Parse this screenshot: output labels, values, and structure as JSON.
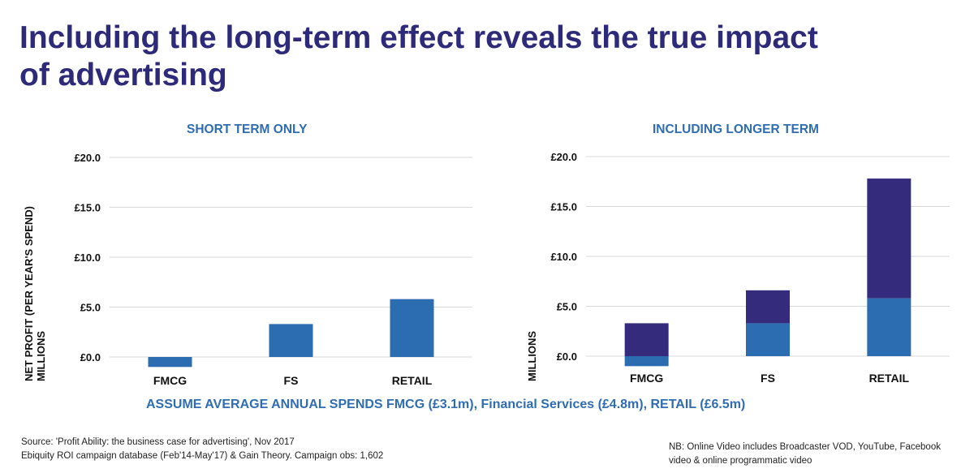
{
  "title_lines": [
    "Including the long-term effect reveals the true impact",
    "of advertising"
  ],
  "colors": {
    "title": "#2e2a7a",
    "accent_blue": "#2f6db3",
    "short_term": "#2c6cb0",
    "long_term": "#352b7d",
    "grid": "#d9d9d9"
  },
  "chart_data": [
    {
      "type": "bar",
      "title": "SHORT TERM ONLY",
      "ylabel": [
        "NET PROFIT (PER YEAR'S SPEND)",
        "MILLIONS"
      ],
      "categories": [
        "FMCG",
        "FS",
        "RETAIL"
      ],
      "series": [
        {
          "values": [
            -1.0,
            3.3,
            5.8
          ]
        }
      ],
      "yticks": [
        "£20.0",
        "£15.0",
        "£10.0",
        "£5.0",
        "£0.0"
      ],
      "ylim": [
        -1.2,
        20
      ],
      "grid": true
    },
    {
      "type": "bar",
      "stacked": true,
      "title": "INCLUDING LONGER TERM",
      "ylabel": [
        "MILLIONS"
      ],
      "categories": [
        "FMCG",
        "FS",
        "RETAIL"
      ],
      "series": [
        {
          "values": [
            -1.0,
            3.3,
            5.8
          ]
        },
        {
          "values": [
            3.3,
            3.3,
            12.0
          ]
        }
      ],
      "yticks": [
        "£20.0",
        "£15.0",
        "£10.0",
        "£5.0",
        "£0.0"
      ],
      "ylim": [
        -1.2,
        20
      ],
      "grid": true
    }
  ],
  "assume_text": "ASSUME AVERAGE ANNUAL SPENDS FMCG (£3.1m), Financial Services (£4.8m), RETAIL (£6.5m)",
  "source_lines": [
    "Source: 'Profit Ability: the business case for advertising', Nov 2017",
    "Ebiquity ROI campaign database (Feb'14-May'17) & Gain Theory. Campaign obs: 1,602"
  ],
  "nb_lines": [
    "NB: Online Video includes Broadcaster VOD, YouTube, Facebook",
    "video & online programmatic video"
  ]
}
